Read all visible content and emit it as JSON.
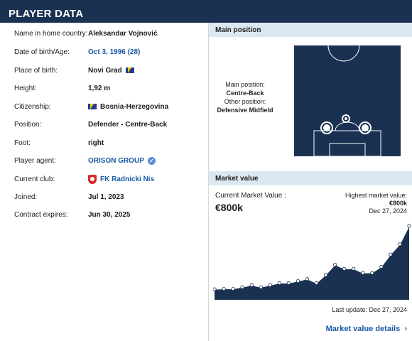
{
  "header": {
    "title": "PLAYER DATA"
  },
  "player": {
    "rows": [
      {
        "label": "Name in home country:",
        "value": "Aleksandar Vojnović"
      },
      {
        "label": "Date of birth/Age:",
        "value": "Oct 3, 1996 (28)"
      },
      {
        "label": "Place of birth:",
        "value": "Novi Grad"
      },
      {
        "label": "Height:",
        "value": "1,92 m"
      },
      {
        "label": "Citizenship:",
        "value": "Bosnia-Herzegovina"
      },
      {
        "label": "Position:",
        "value": "Defender - Centre-Back"
      },
      {
        "label": "Foot:",
        "value": "right"
      },
      {
        "label": "Player agent:",
        "value": "ORISON GROUP"
      },
      {
        "label": "Current club:",
        "value": "FK Radnicki Nis"
      },
      {
        "label": "Joined:",
        "value": "Jul 1, 2023"
      },
      {
        "label": "Contract expires:",
        "value": "Jun 30, 2025"
      }
    ]
  },
  "main_position": {
    "title": "Main position",
    "main_label": "Main position:",
    "main_value": "Centre-Back",
    "other_label": "Other position:",
    "other_value": "Defensive Midfield"
  },
  "market_value": {
    "title": "Market value",
    "current_label": "Current Market Value :",
    "current_value": "€800k",
    "highest_label": "Highest market value:",
    "highest_value": "€800k",
    "highest_date": "Dec 27, 2024",
    "last_update": "Last update: Dec 27, 2024",
    "details_link": "Market value details",
    "chevron_icon": "chevron-right-icon",
    "colors": {
      "area": "#1a3151",
      "line": "#ffffff",
      "accent": "#1a5aa6"
    }
  },
  "chart_data": {
    "type": "area",
    "y": [
      25,
      30,
      30,
      50,
      75,
      50,
      75,
      100,
      100,
      125,
      150,
      100,
      200,
      325,
      275,
      275,
      225,
      225,
      300,
      450,
      575,
      800
    ],
    "ylim": [
      0,
      800
    ]
  }
}
